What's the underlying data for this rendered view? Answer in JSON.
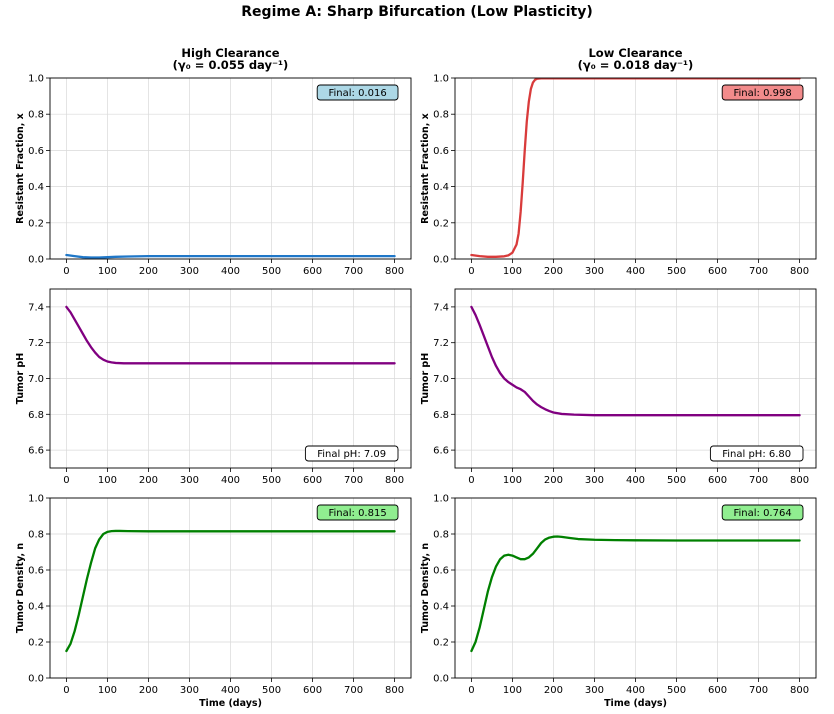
{
  "figure": {
    "suptitle": "Regime A: Sharp Bifurcation (Low Plasticity)"
  },
  "chart_data": [
    {
      "id": "p1",
      "type": "line",
      "title": [
        "High Clearance",
        "(γ₀ = 0.055 day⁻¹)"
      ],
      "xlabel": "",
      "ylabel": "Resistant Fraction, x",
      "xlim": [
        -40,
        840
      ],
      "ylim": [
        0,
        1.0
      ],
      "xticks": [
        0,
        100,
        200,
        300,
        400,
        500,
        600,
        700,
        800
      ],
      "yticks": [
        0.0,
        0.2,
        0.4,
        0.6,
        0.8,
        1.0
      ],
      "ytick_labels": [
        "0.0",
        "0.2",
        "0.4",
        "0.6",
        "0.8",
        "1.0"
      ],
      "grid": true,
      "series": [
        {
          "name": "x",
          "color": "#1f77c8",
          "x": [
            0,
            20,
            40,
            60,
            80,
            100,
            120,
            150,
            200,
            300,
            400,
            500,
            600,
            700,
            800
          ],
          "y": [
            0.022,
            0.016,
            0.01,
            0.008,
            0.008,
            0.01,
            0.012,
            0.014,
            0.016,
            0.016,
            0.016,
            0.016,
            0.016,
            0.016,
            0.016
          ]
        }
      ],
      "annotation": {
        "text": "Final: 0.016",
        "position": "top-right",
        "bg": "#add8e6"
      }
    },
    {
      "id": "p2",
      "type": "line",
      "title": [
        "Low Clearance",
        "(γ₀ = 0.018 day⁻¹)"
      ],
      "xlabel": "",
      "ylabel": "Resistant Fraction, x",
      "xlim": [
        -40,
        840
      ],
      "ylim": [
        0,
        1.0
      ],
      "xticks": [
        0,
        100,
        200,
        300,
        400,
        500,
        600,
        700,
        800
      ],
      "yticks": [
        0.0,
        0.2,
        0.4,
        0.6,
        0.8,
        1.0
      ],
      "ytick_labels": [
        "0.0",
        "0.2",
        "0.4",
        "0.6",
        "0.8",
        "1.0"
      ],
      "grid": true,
      "series": [
        {
          "name": "x",
          "color": "#d93b3b",
          "x": [
            0,
            20,
            40,
            60,
            80,
            90,
            100,
            110,
            115,
            120,
            125,
            130,
            135,
            140,
            145,
            150,
            155,
            160,
            170,
            180,
            200,
            300,
            400,
            500,
            600,
            700,
            800
          ],
          "y": [
            0.022,
            0.016,
            0.012,
            0.012,
            0.015,
            0.02,
            0.035,
            0.08,
            0.14,
            0.26,
            0.42,
            0.6,
            0.76,
            0.87,
            0.94,
            0.975,
            0.99,
            0.996,
            0.998,
            0.998,
            0.998,
            0.998,
            0.998,
            0.998,
            0.998,
            0.998,
            0.998
          ]
        }
      ],
      "annotation": {
        "text": "Final: 0.998",
        "position": "top-right",
        "bg": "#f28b8b"
      }
    },
    {
      "id": "p3",
      "type": "line",
      "title": [],
      "xlabel": "",
      "ylabel": "Tumor pH",
      "xlim": [
        -40,
        840
      ],
      "ylim": [
        6.5,
        7.5
      ],
      "xticks": [
        0,
        100,
        200,
        300,
        400,
        500,
        600,
        700,
        800
      ],
      "yticks": [
        6.6,
        6.8,
        7.0,
        7.2,
        7.4
      ],
      "ytick_labels": [
        "6.6",
        "6.8",
        "7.0",
        "7.2",
        "7.4"
      ],
      "grid": true,
      "series": [
        {
          "name": "pH",
          "color": "#800080",
          "x": [
            0,
            10,
            20,
            30,
            40,
            50,
            60,
            70,
            80,
            90,
            100,
            110,
            120,
            140,
            160,
            200,
            300,
            400,
            500,
            600,
            700,
            800
          ],
          "y": [
            7.4,
            7.37,
            7.33,
            7.29,
            7.25,
            7.21,
            7.175,
            7.145,
            7.12,
            7.105,
            7.095,
            7.09,
            7.087,
            7.085,
            7.085,
            7.085,
            7.085,
            7.085,
            7.085,
            7.085,
            7.085,
            7.085
          ]
        }
      ],
      "annotation": {
        "text": "Final pH: 7.09",
        "position": "bottom-right",
        "bg": "#ffffff"
      }
    },
    {
      "id": "p4",
      "type": "line",
      "title": [],
      "xlabel": "",
      "ylabel": "Tumor pH",
      "xlim": [
        -40,
        840
      ],
      "ylim": [
        6.5,
        7.5
      ],
      "xticks": [
        0,
        100,
        200,
        300,
        400,
        500,
        600,
        700,
        800
      ],
      "yticks": [
        6.6,
        6.8,
        7.0,
        7.2,
        7.4
      ],
      "ytick_labels": [
        "6.6",
        "6.8",
        "7.0",
        "7.2",
        "7.4"
      ],
      "grid": true,
      "series": [
        {
          "name": "pH",
          "color": "#800080",
          "x": [
            0,
            10,
            20,
            30,
            40,
            50,
            60,
            70,
            80,
            90,
            100,
            110,
            120,
            130,
            140,
            150,
            160,
            170,
            180,
            190,
            200,
            220,
            250,
            300,
            350,
            400,
            500,
            600,
            700,
            800
          ],
          "y": [
            7.4,
            7.355,
            7.3,
            7.24,
            7.18,
            7.12,
            7.07,
            7.03,
            7.0,
            6.98,
            6.965,
            6.95,
            6.94,
            6.925,
            6.9,
            6.875,
            6.855,
            6.84,
            6.828,
            6.818,
            6.81,
            6.802,
            6.798,
            6.795,
            6.795,
            6.795,
            6.795,
            6.795,
            6.795,
            6.795
          ]
        }
      ],
      "annotation": {
        "text": "Final pH: 6.80",
        "position": "bottom-right",
        "bg": "#ffffff"
      }
    },
    {
      "id": "p5",
      "type": "line",
      "title": [],
      "xlabel": "Time (days)",
      "ylabel": "Tumor Density, n",
      "xlim": [
        -40,
        840
      ],
      "ylim": [
        0,
        1.0
      ],
      "xticks": [
        0,
        100,
        200,
        300,
        400,
        500,
        600,
        700,
        800
      ],
      "yticks": [
        0.0,
        0.2,
        0.4,
        0.6,
        0.8,
        1.0
      ],
      "ytick_labels": [
        "0.0",
        "0.2",
        "0.4",
        "0.6",
        "0.8",
        "1.0"
      ],
      "grid": true,
      "series": [
        {
          "name": "n",
          "color": "#008000",
          "x": [
            0,
            10,
            20,
            30,
            40,
            50,
            60,
            70,
            80,
            90,
            100,
            110,
            120,
            130,
            150,
            200,
            300,
            400,
            500,
            600,
            700,
            800
          ],
          "y": [
            0.15,
            0.19,
            0.26,
            0.35,
            0.45,
            0.55,
            0.64,
            0.72,
            0.77,
            0.8,
            0.812,
            0.816,
            0.817,
            0.817,
            0.816,
            0.815,
            0.815,
            0.815,
            0.815,
            0.815,
            0.815,
            0.815
          ]
        }
      ],
      "annotation": {
        "text": "Final: 0.815",
        "position": "top-right",
        "bg": "#90ee90"
      }
    },
    {
      "id": "p6",
      "type": "line",
      "title": [],
      "xlabel": "Time (days)",
      "ylabel": "Tumor Density, n",
      "xlim": [
        -40,
        840
      ],
      "ylim": [
        0,
        1.0
      ],
      "xticks": [
        0,
        100,
        200,
        300,
        400,
        500,
        600,
        700,
        800
      ],
      "yticks": [
        0.0,
        0.2,
        0.4,
        0.6,
        0.8,
        1.0
      ],
      "ytick_labels": [
        "0.0",
        "0.2",
        "0.4",
        "0.6",
        "0.8",
        "1.0"
      ],
      "grid": true,
      "series": [
        {
          "name": "n",
          "color": "#008000",
          "x": [
            0,
            10,
            20,
            30,
            40,
            50,
            60,
            70,
            80,
            90,
            100,
            110,
            120,
            130,
            140,
            150,
            160,
            170,
            180,
            190,
            200,
            210,
            220,
            240,
            260,
            300,
            350,
            400,
            500,
            600,
            700,
            800
          ],
          "y": [
            0.15,
            0.2,
            0.28,
            0.38,
            0.48,
            0.56,
            0.62,
            0.66,
            0.68,
            0.685,
            0.68,
            0.67,
            0.66,
            0.66,
            0.67,
            0.69,
            0.72,
            0.75,
            0.77,
            0.78,
            0.785,
            0.786,
            0.784,
            0.778,
            0.772,
            0.768,
            0.766,
            0.765,
            0.764,
            0.764,
            0.764,
            0.764
          ]
        }
      ],
      "annotation": {
        "text": "Final: 0.764",
        "position": "top-right",
        "bg": "#90ee90"
      }
    }
  ]
}
